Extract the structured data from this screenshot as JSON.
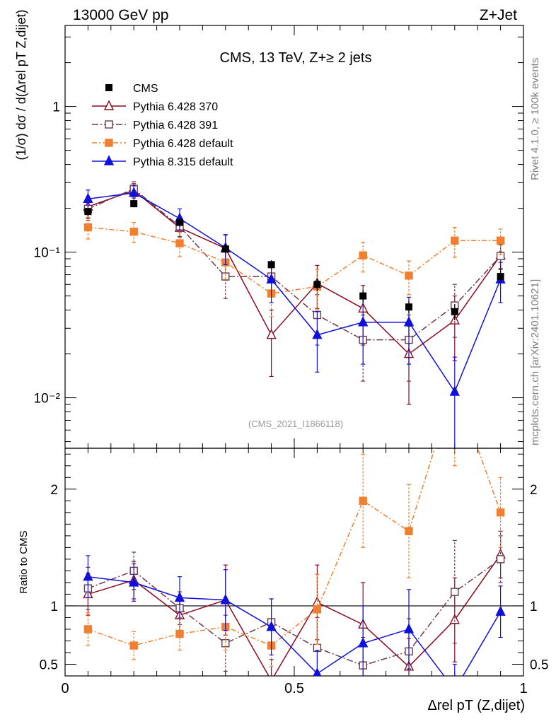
{
  "header": {
    "left": "13000 GeV pp",
    "right": "Z+Jet"
  },
  "side_text": {
    "rivet": "Rivet 4.1.0, ≥ 100k events",
    "source": "mcplots.cern.ch [arXiv:2401.10621]"
  },
  "chart_data": {
    "type": "line",
    "title": "CMS, 13 TeV, Z+≥ 2 jets",
    "watermark": "(CMS_2021_I1866118)",
    "ylabel": "(1/σ) dσ / d(Δrel pT Z,dijet)",
    "ratio_ylabel": "Ratio to CMS",
    "xlabel": "Δrel pT (Z,dijet)",
    "xlim": [
      0,
      1
    ],
    "ylim": [
      0.0045,
      3.6
    ],
    "yscale": "log",
    "ratio_ylim": [
      0.4,
      2.35
    ],
    "x_ticks": [
      "0",
      "0.5",
      "1"
    ],
    "y_ticks": [
      "10⁻²",
      "10⁻¹",
      "1"
    ],
    "ratio_ticks": [
      "0.5",
      "1",
      "2"
    ],
    "legend_location": "top-left",
    "x": [
      0.05,
      0.15,
      0.25,
      0.35,
      0.45,
      0.55,
      0.65,
      0.75,
      0.85,
      0.95
    ],
    "data": {
      "name": "CMS",
      "values": [
        0.19,
        0.215,
        0.16,
        0.105,
        0.082,
        0.06,
        0.05,
        0.042,
        0.039,
        0.068
      ],
      "errors": [
        0.012,
        0.012,
        0.01,
        0.008,
        0.006,
        0.006,
        0.005,
        0.004,
        0.005,
        0.006
      ]
    },
    "series": [
      {
        "name": "Pythia 6.428 370",
        "color": "#8b0a1e",
        "marker": "open-triangle",
        "dash": "",
        "values": [
          0.205,
          0.265,
          0.147,
          0.106,
          0.027,
          0.061,
          0.041,
          0.02,
          0.034,
          0.095
        ],
        "errors": [
          0.035,
          0.03,
          0.02,
          0.025,
          0.013,
          0.02,
          0.018,
          0.011,
          0.016,
          0.018
        ],
        "ratio": [
          1.1,
          1.22,
          0.92,
          1.05,
          0.36,
          1.03,
          0.84,
          0.48,
          0.88,
          1.44
        ],
        "ratio_errors": [
          0.18,
          0.16,
          0.14,
          0.3,
          0.18,
          0.32,
          0.36,
          0.24,
          0.36,
          0.2
        ]
      },
      {
        "name": "Pythia 6.428 391",
        "color": "#6a3a4a",
        "marker": "open-square",
        "dash": "9 3 2 3",
        "values": [
          0.198,
          0.272,
          0.15,
          0.068,
          0.068,
          0.037,
          0.025,
          0.025,
          0.043,
          0.094
        ],
        "errors": [
          0.033,
          0.032,
          0.022,
          0.02,
          0.018,
          0.014,
          0.012,
          0.012,
          0.017,
          0.018
        ],
        "ratio": [
          1.15,
          1.3,
          0.98,
          0.68,
          0.86,
          0.64,
          0.49,
          0.61,
          1.12,
          1.4
        ],
        "ratio_errors": [
          0.18,
          0.16,
          0.14,
          0.24,
          0.2,
          0.26,
          0.24,
          0.28,
          0.44,
          0.2
        ]
      },
      {
        "name": "Pythia 6.428 default",
        "color": "#f08030",
        "marker": "filled-square",
        "dash": "7 3 2 3",
        "values": [
          0.148,
          0.138,
          0.115,
          0.085,
          0.052,
          0.058,
          0.095,
          0.069,
          0.12,
          0.12
        ],
        "errors": [
          0.025,
          0.022,
          0.022,
          0.02,
          0.016,
          0.018,
          0.022,
          0.018,
          0.028,
          0.024
        ],
        "ratio": [
          0.8,
          0.66,
          0.76,
          0.82,
          0.66,
          0.97,
          1.9,
          1.64,
          2.9,
          1.8
        ],
        "ratio_errors": [
          0.14,
          0.12,
          0.14,
          0.2,
          0.18,
          0.3,
          0.4,
          0.4,
          0.7,
          0.3
        ]
      },
      {
        "name": "Pythia 8.315 default",
        "color": "#1010dd",
        "marker": "filled-triangle",
        "dash": "",
        "values": [
          0.232,
          0.255,
          0.17,
          0.107,
          0.065,
          0.027,
          0.033,
          0.033,
          0.011,
          0.065
        ],
        "errors": [
          0.035,
          0.03,
          0.028,
          0.025,
          0.02,
          0.012,
          0.016,
          0.016,
          0.008,
          0.02
        ],
        "ratio": [
          1.25,
          1.2,
          1.07,
          1.05,
          0.82,
          0.42,
          0.68,
          0.8,
          0.28,
          0.95
        ],
        "ratio_errors": [
          0.18,
          0.16,
          0.18,
          0.26,
          0.24,
          0.2,
          0.32,
          0.34,
          0.22,
          0.22
        ]
      }
    ]
  }
}
